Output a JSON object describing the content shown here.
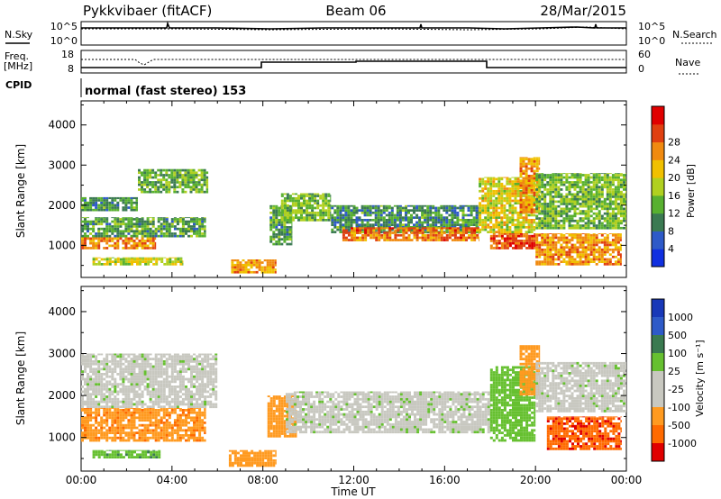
{
  "header": {
    "station": "Pykkvibaer (fitACF)",
    "beam": "Beam 06",
    "date": "28/Mar/2015"
  },
  "summary": {
    "nsky_label": "N.Sky",
    "nsearch_label": "N.Search",
    "nsky_ticks": [
      "10^5",
      "10^0"
    ],
    "nsearch_ticks": [
      "10^5",
      "10^0"
    ],
    "freq_label_1": "Freq.",
    "freq_label_2": "[MHz]",
    "freq_ticks": [
      "18",
      "8"
    ],
    "nave_label": "Nave",
    "nave_ticks": [
      "60",
      "0"
    ],
    "cpid_label": "CPID",
    "cpid_text": "normal (fast stereo) 153"
  },
  "colors": {
    "power_scale": [
      "#1030e0",
      "#2e5ac8",
      "#3b7a52",
      "#58b030",
      "#b0d020",
      "#f0c000",
      "#f08a10",
      "#e04010",
      "#e00000"
    ],
    "velocity_scale": [
      "#e00000",
      "#ff6a00",
      "#ff9a20",
      "#c8c8c0",
      "#c8c8c0",
      "#66c030",
      "#3a7a50",
      "#2e5ac8",
      "#1838b8"
    ]
  },
  "chart_data": [
    {
      "type": "heatmap",
      "name": "Power",
      "ylabel": "Slant Range [km]",
      "xlabel": "Time UT",
      "yticks": [
        "1000",
        "2000",
        "3000",
        "4000"
      ],
      "ylim": [
        200,
        4600
      ],
      "xticks": [
        "00:00",
        "04:00",
        "08:00",
        "12:00",
        "16:00",
        "20:00",
        "00:00"
      ],
      "xlim": [
        0,
        24
      ],
      "colorbar_label": "Power [dB]",
      "colorbar_ticks": [
        "4",
        "8",
        "12",
        "16",
        "20",
        "24",
        "28"
      ],
      "bands": [
        {
          "t0": 0.0,
          "t1": 2.5,
          "r0": 1850,
          "r1": 2200,
          "v": 11
        },
        {
          "t0": 2.5,
          "t1": 5.6,
          "r0": 2300,
          "r1": 2900,
          "v": 13
        },
        {
          "t0": 0.0,
          "t1": 5.5,
          "r0": 1200,
          "r1": 1700,
          "v": 12
        },
        {
          "t0": 0.0,
          "t1": 3.3,
          "r0": 900,
          "r1": 1200,
          "v": 23
        },
        {
          "t0": 0.5,
          "t1": 4.5,
          "r0": 500,
          "r1": 700,
          "v": 17
        },
        {
          "t0": 6.6,
          "t1": 8.6,
          "r0": 300,
          "r1": 650,
          "v": 22
        },
        {
          "t0": 8.3,
          "t1": 9.3,
          "r0": 1000,
          "r1": 2000,
          "v": 12
        },
        {
          "t0": 8.8,
          "t1": 11.0,
          "r0": 1600,
          "r1": 2300,
          "v": 14
        },
        {
          "t0": 11.0,
          "t1": 17.5,
          "r0": 1300,
          "r1": 2000,
          "v": 11
        },
        {
          "t0": 11.5,
          "t1": 17.5,
          "r0": 1100,
          "r1": 1450,
          "v": 24
        },
        {
          "t0": 17.5,
          "t1": 20.0,
          "r0": 1300,
          "r1": 2700,
          "v": 18
        },
        {
          "t0": 18.0,
          "t1": 20.0,
          "r0": 900,
          "r1": 1300,
          "v": 26
        },
        {
          "t0": 19.3,
          "t1": 20.2,
          "r0": 1800,
          "r1": 3200,
          "v": 22
        },
        {
          "t0": 20.0,
          "t1": 24.0,
          "r0": 1400,
          "r1": 2800,
          "v": 14
        },
        {
          "t0": 20.0,
          "t1": 23.8,
          "r0": 500,
          "r1": 1300,
          "v": 22
        }
      ]
    },
    {
      "type": "heatmap",
      "name": "Velocity",
      "ylabel": "Slant Range [km]",
      "xlabel": "Time UT",
      "yticks": [
        "1000",
        "2000",
        "3000",
        "4000"
      ],
      "ylim": [
        200,
        4600
      ],
      "xticks": [
        "00:00",
        "04:00",
        "08:00",
        "12:00",
        "16:00",
        "20:00",
        "00:00"
      ],
      "xlim": [
        0,
        24
      ],
      "colorbar_label": "Velocity [m s⁻¹]",
      "colorbar_ticks": [
        "1000",
        "500",
        "100",
        "25",
        "-25",
        "-100",
        "-500",
        "-1000"
      ],
      "bands": [
        {
          "t0": 0.0,
          "t1": 6.0,
          "r0": 1700,
          "r1": 3000,
          "v": 0
        },
        {
          "t0": 0.0,
          "t1": 5.5,
          "r0": 900,
          "r1": 1700,
          "v": -250
        },
        {
          "t0": 0.5,
          "t1": 3.5,
          "r0": 500,
          "r1": 700,
          "v": 80
        },
        {
          "t0": 6.5,
          "t1": 8.6,
          "r0": 300,
          "r1": 700,
          "v": -200
        },
        {
          "t0": 8.2,
          "t1": 9.5,
          "r0": 1000,
          "r1": 2000,
          "v": -150
        },
        {
          "t0": 9.0,
          "t1": 18.0,
          "r0": 1100,
          "r1": 2100,
          "v": 0
        },
        {
          "t0": 18.0,
          "t1": 20.0,
          "r0": 900,
          "r1": 2700,
          "v": 60
        },
        {
          "t0": 19.3,
          "t1": 20.2,
          "r0": 2000,
          "r1": 3200,
          "v": -150
        },
        {
          "t0": 20.0,
          "t1": 24.0,
          "r0": 1600,
          "r1": 2800,
          "v": 0
        },
        {
          "t0": 20.5,
          "t1": 23.8,
          "r0": 700,
          "r1": 1500,
          "v": -600
        }
      ]
    }
  ]
}
